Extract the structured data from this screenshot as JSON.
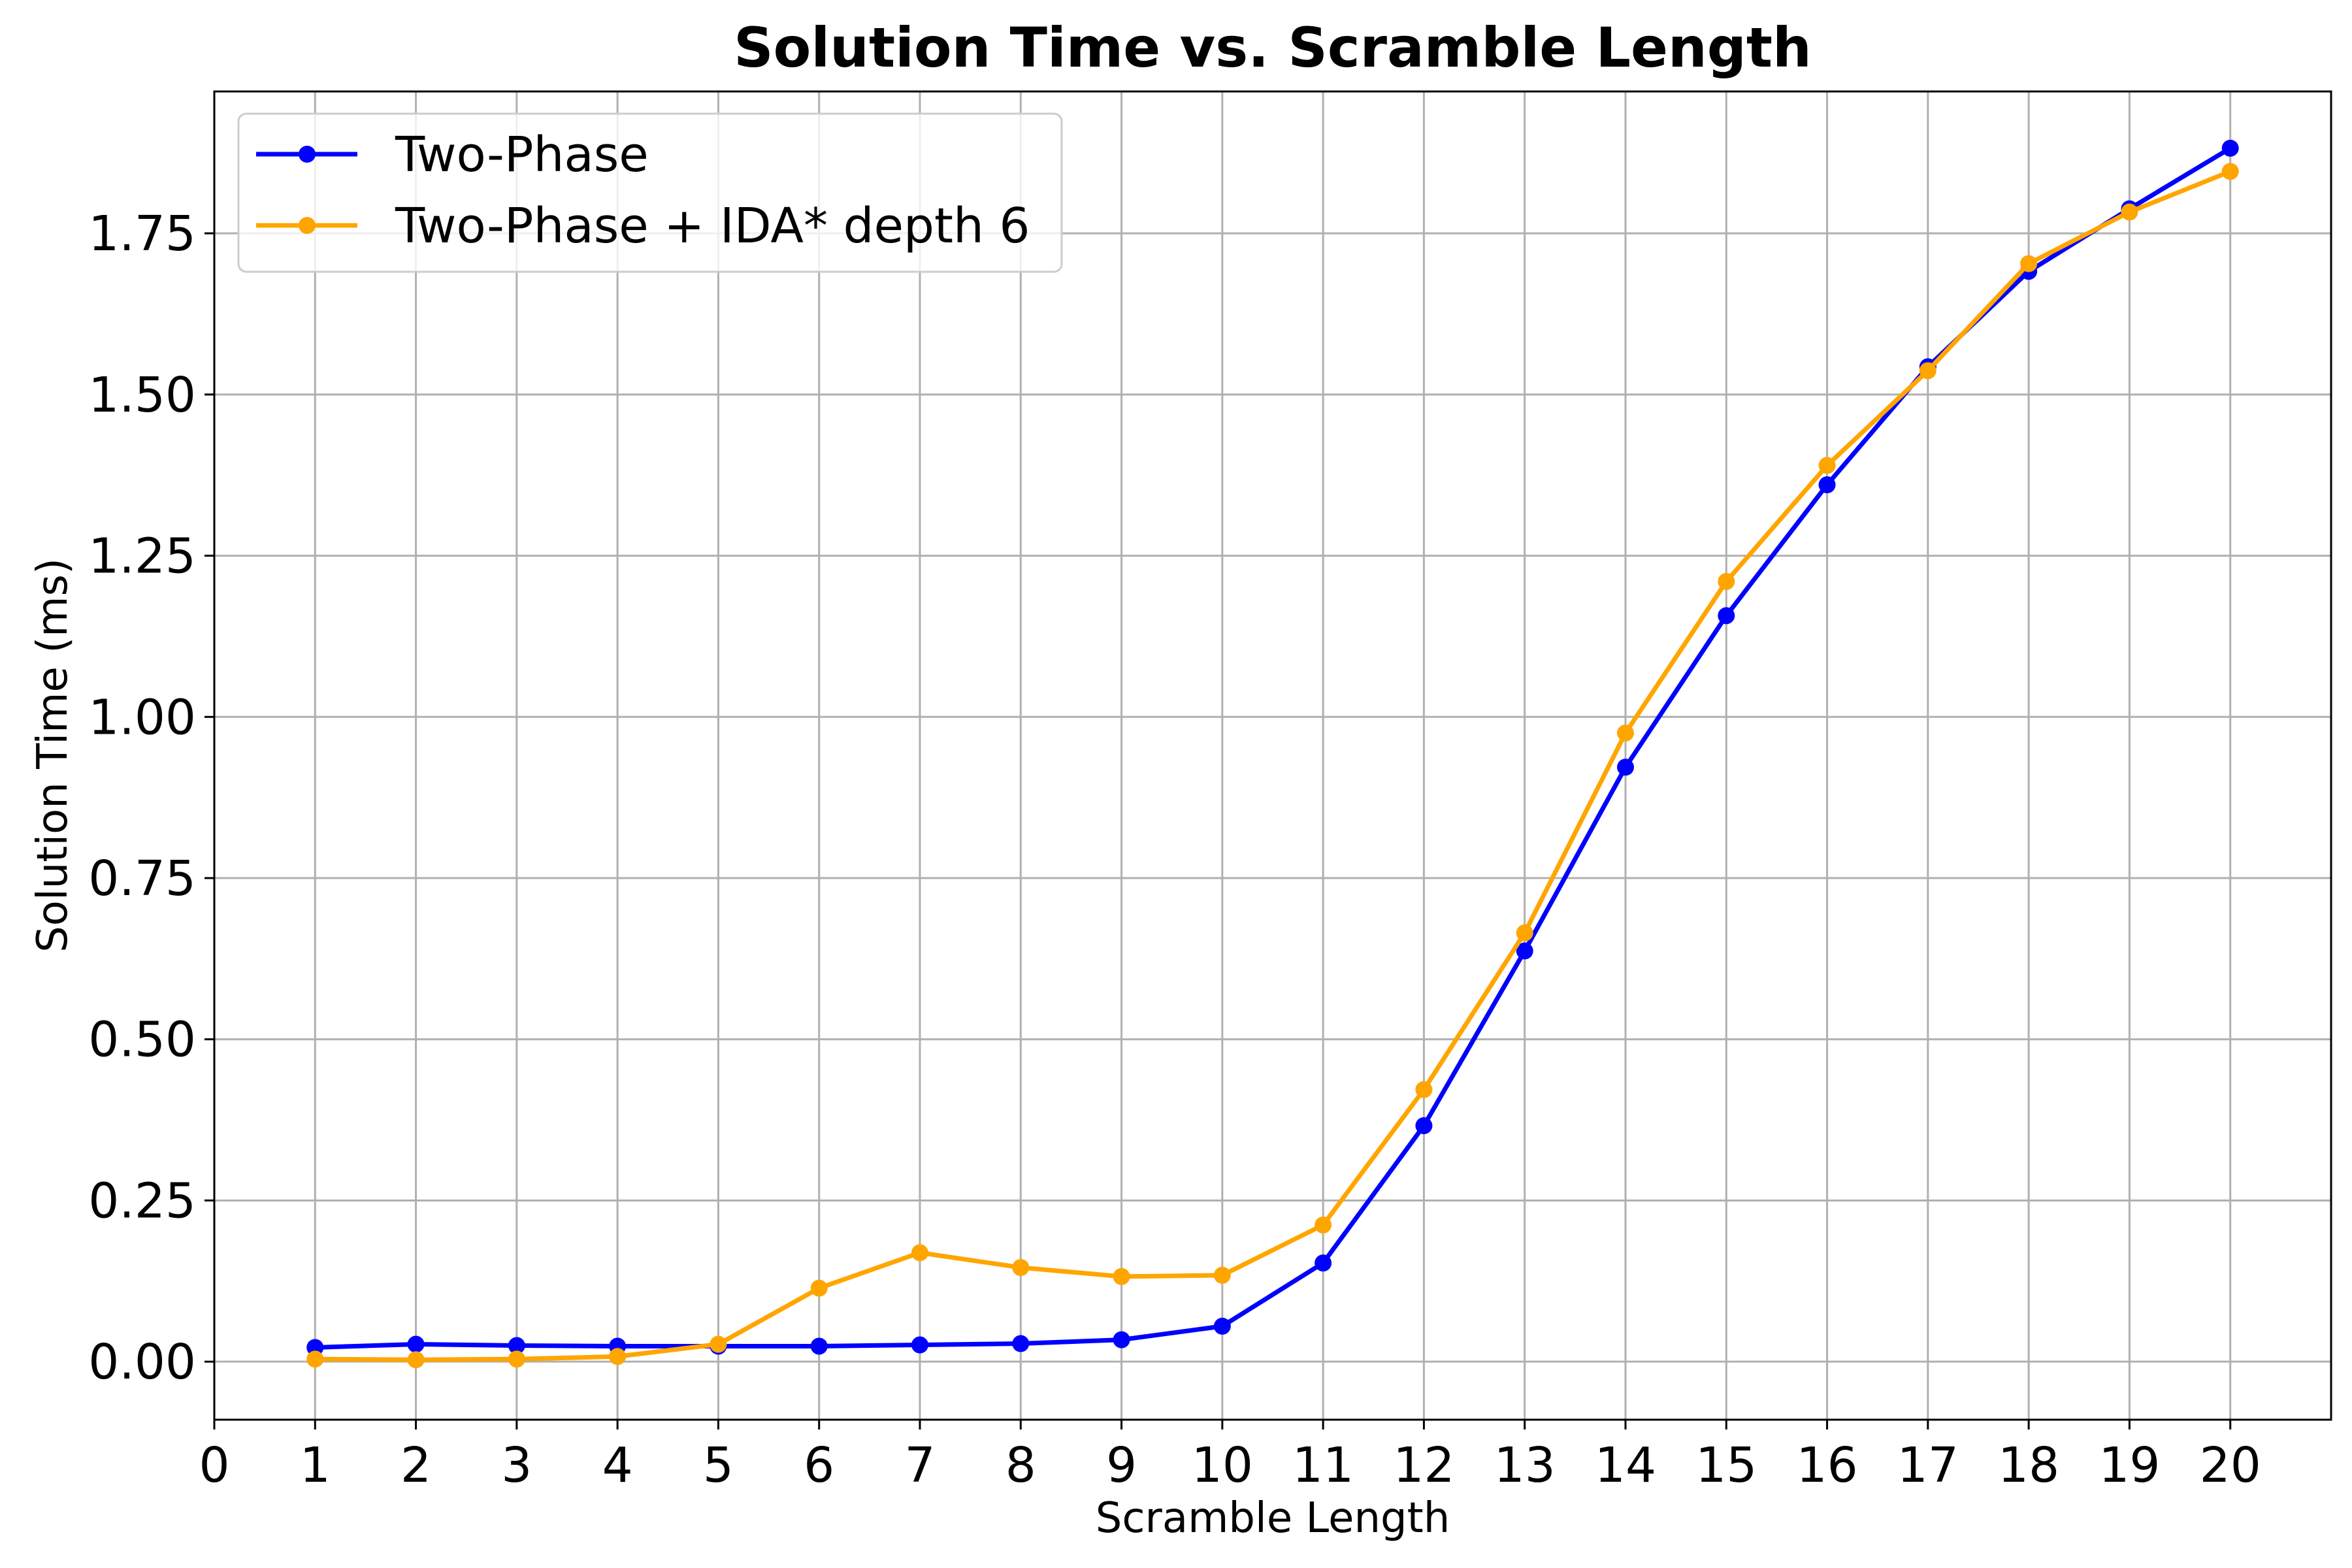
{
  "chart_data": {
    "type": "line",
    "title": "Solution Time vs. Scramble Length",
    "xlabel": "Scramble Length",
    "ylabel": "Solution Time (ms)",
    "x": [
      1,
      2,
      3,
      4,
      5,
      6,
      7,
      8,
      9,
      10,
      11,
      12,
      13,
      14,
      15,
      16,
      17,
      18,
      19,
      20
    ],
    "xlim": [
      0,
      21
    ],
    "ylim": [
      -0.09,
      1.97
    ],
    "xticks": [
      "0",
      "1",
      "2",
      "3",
      "4",
      "5",
      "6",
      "7",
      "8",
      "9",
      "10",
      "11",
      "12",
      "13",
      "14",
      "15",
      "16",
      "17",
      "18",
      "19",
      "20"
    ],
    "yticks": [
      "0.00",
      "0.25",
      "0.50",
      "0.75",
      "1.00",
      "1.25",
      "1.50",
      "1.75"
    ],
    "grid": true,
    "legend_position": "top-left",
    "series": [
      {
        "name": "Two-Phase",
        "color": "#0000ff",
        "marker": "circle",
        "values": [
          0.022,
          0.027,
          0.025,
          0.024,
          0.024,
          0.024,
          0.026,
          0.028,
          0.034,
          0.055,
          0.153,
          0.366,
          0.637,
          0.922,
          1.157,
          1.36,
          1.543,
          1.691,
          1.788,
          1.882
        ]
      },
      {
        "name": "Two-Phase + IDA* depth 6",
        "color": "#ffa500",
        "marker": "circle",
        "values": [
          0.004,
          0.003,
          0.004,
          0.008,
          0.027,
          0.114,
          0.169,
          0.146,
          0.132,
          0.134,
          0.212,
          0.422,
          0.665,
          0.975,
          1.21,
          1.39,
          1.537,
          1.703,
          1.783,
          1.846
        ]
      }
    ]
  }
}
